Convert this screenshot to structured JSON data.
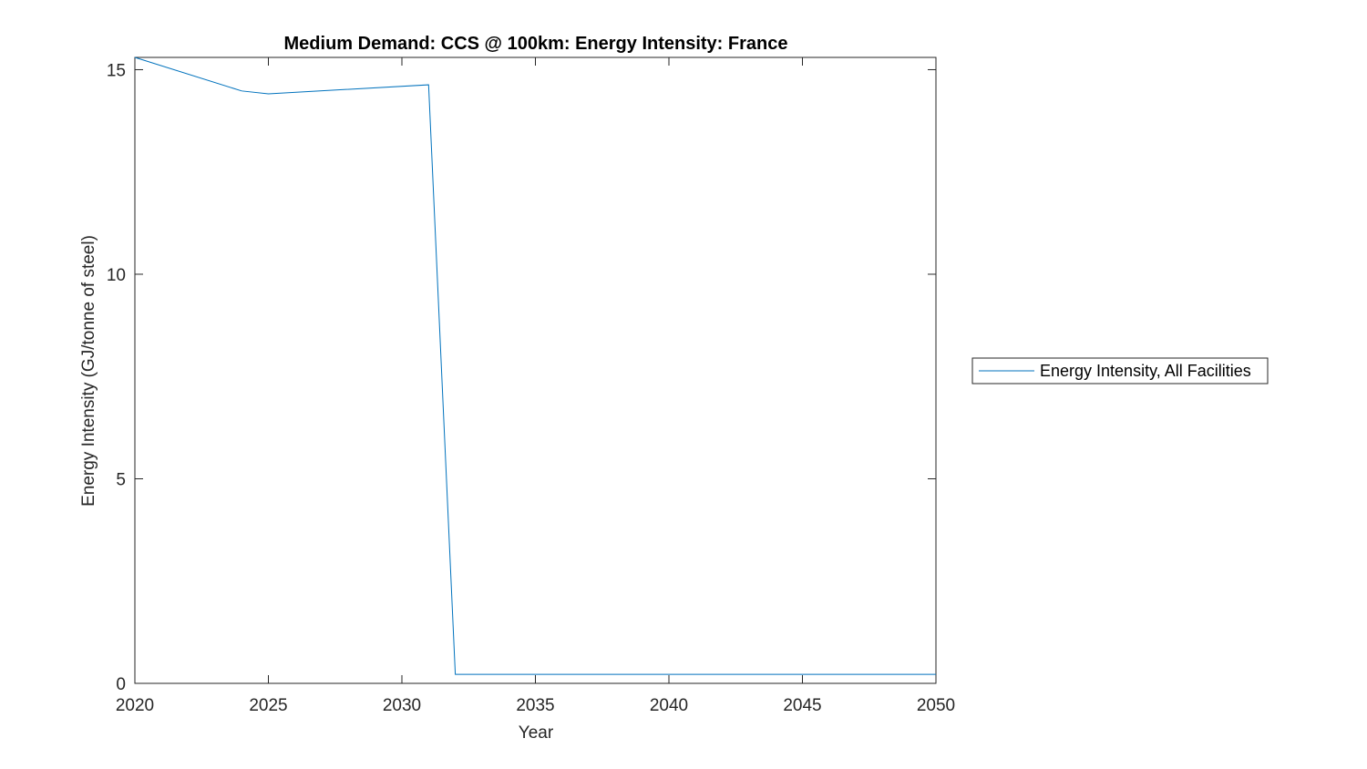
{
  "chart_data": {
    "type": "line",
    "title": "Medium Demand: CCS @ 100km: Energy Intensity: France",
    "x_label": "Year",
    "y_label": "Energy Intensity (GJ/tonne of steel)",
    "x": [
      2020,
      2024,
      2025,
      2031,
      2032,
      2050
    ],
    "series": [
      {
        "name": "Energy Intensity, All Facilities",
        "color": "#0072bd",
        "values": [
          15.3,
          14.48,
          14.41,
          14.63,
          0.22,
          0.22
        ]
      }
    ],
    "xlim": [
      2020,
      2050
    ],
    "xticks": [
      2020,
      2025,
      2030,
      2035,
      2040,
      2045,
      2050
    ],
    "ylim": [
      0,
      15.3
    ],
    "yticks": [
      0,
      5,
      10,
      15
    ],
    "legend": "outside-right"
  }
}
